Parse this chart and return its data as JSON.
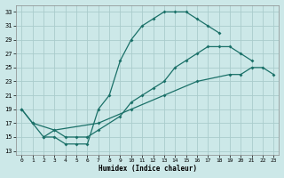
{
  "xlabel": "Humidex (Indice chaleur)",
  "bg_color": "#cce8e8",
  "grid_color": "#aacccc",
  "line_color": "#1a7068",
  "xlim": [
    -0.5,
    23.5
  ],
  "ylim": [
    12.5,
    34.0
  ],
  "yticks": [
    13,
    15,
    17,
    19,
    21,
    23,
    25,
    27,
    29,
    31,
    33
  ],
  "xticks": [
    0,
    1,
    2,
    3,
    4,
    5,
    6,
    7,
    8,
    9,
    10,
    11,
    12,
    13,
    14,
    15,
    16,
    17,
    18,
    19,
    20,
    21,
    22,
    23
  ],
  "line1_x": [
    0,
    1,
    2,
    3,
    4,
    5,
    6,
    7,
    8,
    9,
    10,
    11,
    12,
    13,
    14,
    15,
    16,
    17,
    18
  ],
  "line1_y": [
    19,
    17,
    15,
    15,
    14,
    14,
    14,
    19,
    21,
    26,
    29,
    31,
    32,
    33,
    33,
    33,
    32,
    31,
    30
  ],
  "line2_x": [
    2,
    3,
    4,
    5,
    6,
    7,
    9,
    10,
    11,
    12,
    13,
    14,
    15,
    16,
    17,
    18,
    19,
    20,
    21
  ],
  "line2_y": [
    15,
    16,
    15,
    15,
    15,
    16,
    18,
    20,
    21,
    22,
    23,
    25,
    26,
    27,
    28,
    28,
    28,
    27,
    26
  ],
  "line3_x": [
    0,
    1,
    3,
    7,
    10,
    13,
    16,
    19,
    20,
    21,
    22,
    23
  ],
  "line3_y": [
    19,
    17,
    16,
    17,
    19,
    21,
    23,
    24,
    24,
    25,
    25,
    24
  ]
}
